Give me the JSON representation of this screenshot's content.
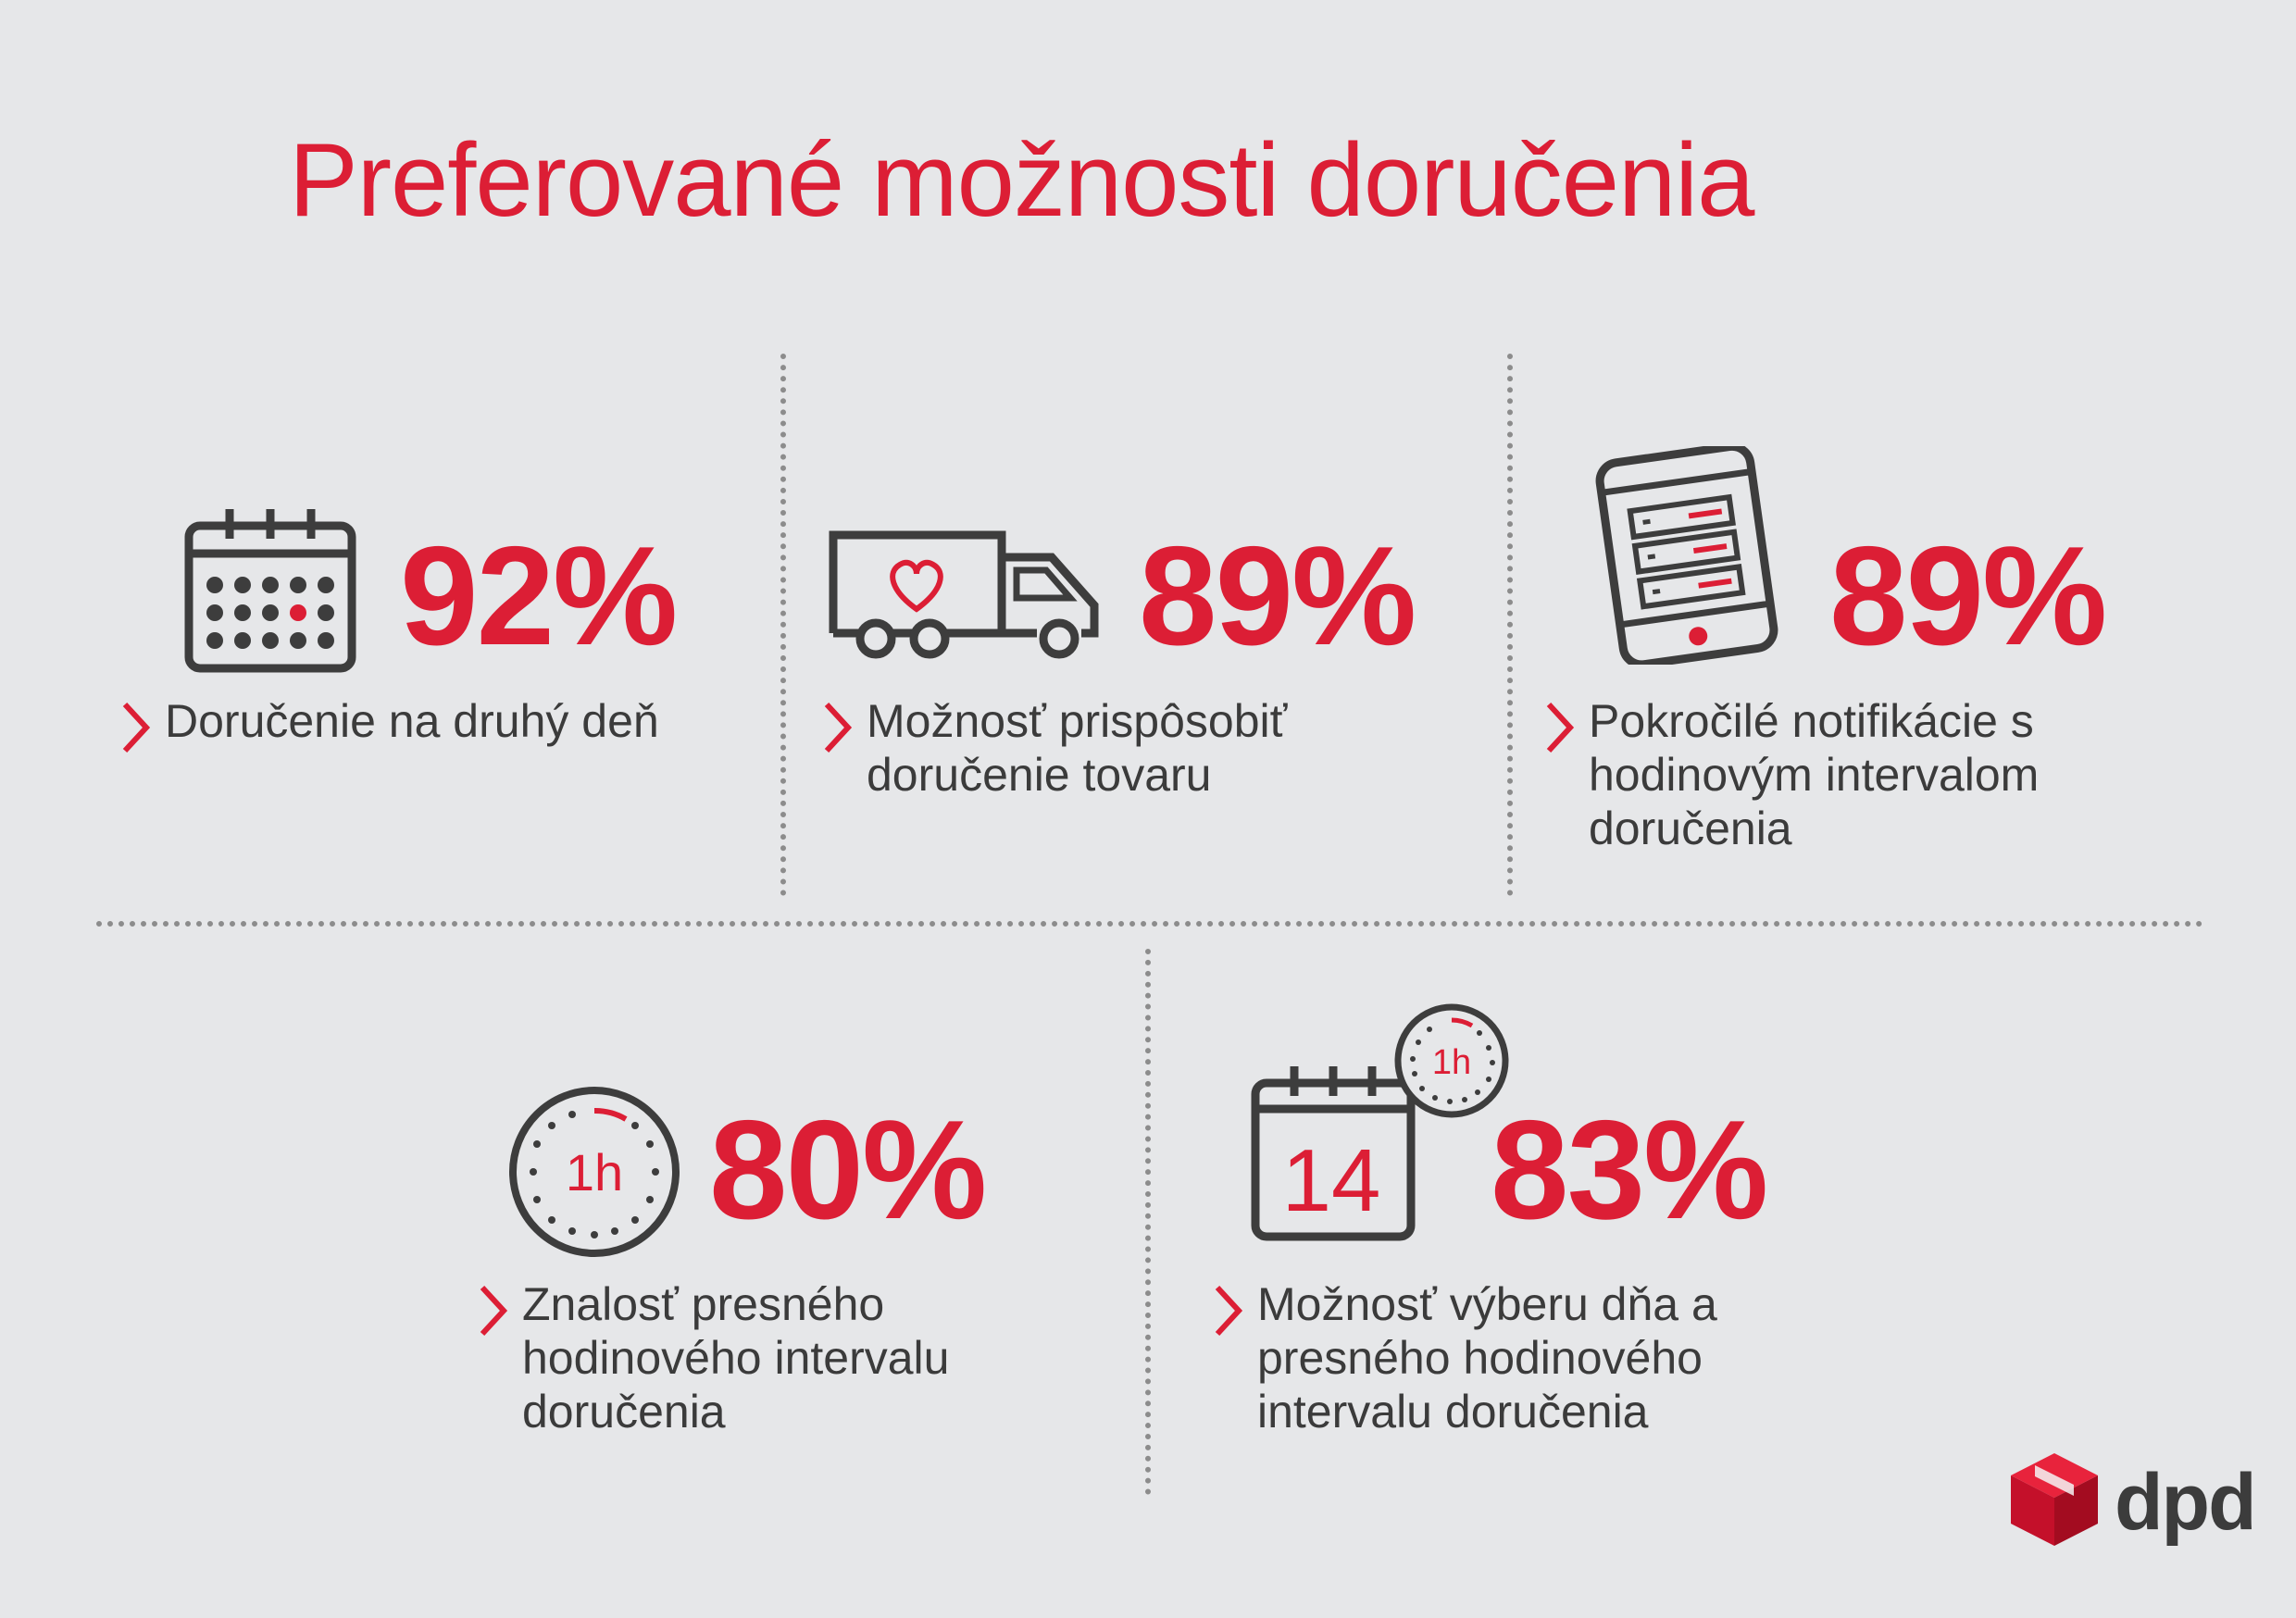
{
  "title": "Preferované možnosti doručenia",
  "stats": [
    {
      "value": "92%",
      "caption": [
        "Doručenie na druhý deň"
      ],
      "icon": "calendar-icon"
    },
    {
      "value": "89%",
      "caption": [
        "Možnosť prispôsobiť",
        "doručenie tovaru"
      ],
      "icon": "truck-heart-icon"
    },
    {
      "value": "89%",
      "caption": [
        "Pokročilé notifikácie  s",
        "hodinovým intervalom",
        "doručenia"
      ],
      "icon": "phone-notifications-icon"
    },
    {
      "value": "80%",
      "caption": [
        "Znalosť presného",
        "hodinového intervalu",
        "doručenia"
      ],
      "icon": "clock-1h-icon",
      "icon_label": "1h"
    },
    {
      "value": "83%",
      "caption": [
        "Možnosť výberu dňa a",
        "presného hodinového",
        "intervalu doručenia"
      ],
      "icon": "calendar-14-clock-icon",
      "icon_day": "14",
      "icon_label": "1h"
    }
  ],
  "brand": {
    "name": "dpd",
    "logo": "dpd-cube-logo"
  },
  "colors": {
    "accent": "#dc1e35",
    "text": "#3b3b3b",
    "icon": "#3d3d3d",
    "background": "#e6e7e9"
  }
}
